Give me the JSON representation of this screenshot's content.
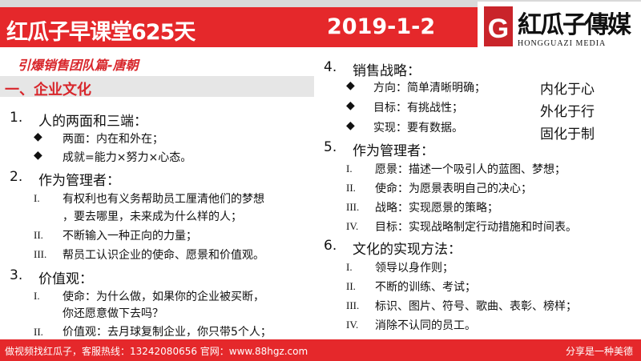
{
  "header": {
    "title": "红瓜子早课堂625天",
    "date": "2019-1-2",
    "logo_cn": "紅瓜子傳媒",
    "logo_en": "HONGGUAZI MEDIA",
    "logo_mark": "G"
  },
  "subtitle": "引爆销售团队篇-唐朝",
  "section": "一、企业文化",
  "left": [
    {
      "num": "1.",
      "head": "人的两面和三端：",
      "items": [
        {
          "m": "◆",
          "t": "两面：内在和外在；"
        },
        {
          "m": "◆",
          "t": "成就=能力×努力×心态。"
        }
      ]
    },
    {
      "num": "2.",
      "head": "作为管理者：",
      "items": [
        {
          "m": "I.",
          "t": "有权利也有义务帮助员工厘清他们的梦想",
          "t2": "，要去哪里，未来成为什么样的人；"
        },
        {
          "m": "II.",
          "t": "不断输入一种正向的力量；"
        },
        {
          "m": "III.",
          "t": "帮员工认识企业的使命、愿景和价值观。"
        }
      ]
    },
    {
      "num": "3.",
      "head": "价值观：",
      "items": [
        {
          "m": "I.",
          "t": "使命：为什么做，如果你的企业被买断，",
          "t2": "你还愿意做下去吗？"
        },
        {
          "m": "II.",
          "t": "价值观：去月球复制企业，你只带5个人；"
        }
      ]
    }
  ],
  "right": [
    {
      "num": "4.",
      "head": "销售战略：",
      "items": [
        {
          "m": "◆",
          "t": "方向：简单清晰明确；"
        },
        {
          "m": "◆",
          "t": "目标：有挑战性；"
        },
        {
          "m": "◆",
          "t": "实现：要有数据。"
        }
      ],
      "side": [
        "内化于心",
        "外化于行",
        "固化于制"
      ]
    },
    {
      "num": "5.",
      "head": "作为管理者：",
      "items": [
        {
          "m": "I.",
          "t": "愿景：描述一个吸引人的蓝图、梦想；"
        },
        {
          "m": "II.",
          "t": "使命：为愿景表明自己的决心；"
        },
        {
          "m": "III.",
          "t": "战略：实现愿景的策略；"
        },
        {
          "m": "IV.",
          "t": "目标：实现战略制定行动措施和时间表。"
        }
      ]
    },
    {
      "num": "6.",
      "head": "文化的实现方法：",
      "items": [
        {
          "m": "I.",
          "t": "领导以身作则；"
        },
        {
          "m": "II.",
          "t": "不断的训练、考试；"
        },
        {
          "m": "III.",
          "t": "标识、图片、符号、歌曲、表彰、榜样；"
        },
        {
          "m": "IV.",
          "t": "消除不认同的员工。"
        }
      ]
    }
  ],
  "footer": {
    "left": "做视频找红瓜子，客服热线：13242080656  官网：www.88hgz.com",
    "right": "分享是一种美德"
  }
}
